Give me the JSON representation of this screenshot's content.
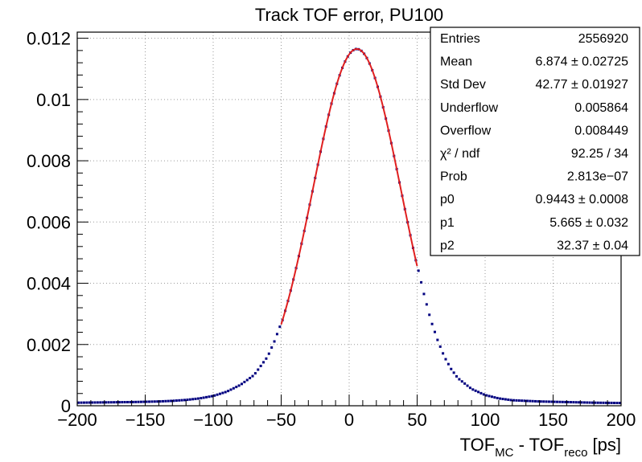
{
  "chart_data": {
    "type": "scatter",
    "title": "Track TOF error, PU100",
    "xlabel": {
      "main": "TOF",
      "sub1": "MC",
      "mid": " - TOF",
      "sub2": "reco",
      "unit": " [ps]"
    },
    "ylabel": "",
    "xlim": [
      -200,
      200
    ],
    "ylim": [
      0,
      0.0122
    ],
    "grid": true,
    "xticks": [
      -200,
      -150,
      -100,
      -50,
      0,
      50,
      100,
      150,
      200
    ],
    "xtick_labels": [
      "−200",
      "−150",
      "−100",
      "−50",
      "0",
      "50",
      "100",
      "150",
      "200"
    ],
    "yticks": [
      0,
      0.002,
      0.004,
      0.006,
      0.008,
      0.01,
      0.012
    ],
    "ytick_labels": [
      "0",
      "0.002",
      "0.004",
      "0.006",
      "0.008",
      "0.01",
      "0.012"
    ],
    "histogram": {
      "bin_width": 2,
      "x_start": -200,
      "x_end": 200,
      "tail_left": [
        [
          -200,
          0.0001
        ],
        [
          -180,
          0.00011
        ],
        [
          -160,
          0.00012
        ],
        [
          -140,
          0.00014
        ],
        [
          -130,
          0.00016
        ],
        [
          -120,
          0.00019
        ],
        [
          -110,
          0.00024
        ],
        [
          -100,
          0.00032
        ],
        [
          -90,
          0.00046
        ],
        [
          -80,
          0.00068
        ],
        [
          -70,
          0.001
        ],
        [
          -60,
          0.0016
        ],
        [
          -55,
          0.0021
        ],
        [
          -50,
          0.0027
        ],
        [
          -45,
          0.0035
        ]
      ],
      "tail_right": [
        [
          50,
          0.0046
        ],
        [
          55,
          0.00365
        ],
        [
          60,
          0.0028
        ],
        [
          65,
          0.00215
        ],
        [
          70,
          0.0016
        ],
        [
          75,
          0.0012
        ],
        [
          80,
          0.0009
        ],
        [
          90,
          0.00055
        ],
        [
          100,
          0.00035
        ],
        [
          110,
          0.00024
        ],
        [
          120,
          0.00018
        ],
        [
          140,
          0.00014
        ],
        [
          160,
          0.00012
        ],
        [
          180,
          0.0001
        ],
        [
          200,
          9e-05
        ]
      ],
      "color": "#000080"
    },
    "fit": {
      "function": "gaus",
      "range": [
        -50,
        50
      ],
      "p0": 0.9443,
      "p1": 5.665,
      "p2": 32.37,
      "amplitude": 0.01165,
      "color": "#e02020"
    },
    "stats_box": {
      "position": "top-right",
      "rows": [
        {
          "label": "Entries",
          "value": "2556920"
        },
        {
          "label": "Mean",
          "value": "6.874 ± 0.02725"
        },
        {
          "label": "Std Dev",
          "value": "42.77 ± 0.01927"
        },
        {
          "label": "Underflow",
          "value": "0.005864"
        },
        {
          "label": "Overflow",
          "value": "0.008449"
        },
        {
          "label": "χ² / ndf",
          "value": "92.25 / 34"
        },
        {
          "label": "Prob",
          "value": "2.813e−07"
        },
        {
          "label": "p0",
          "value": "0.9443 ± 0.0008"
        },
        {
          "label": "p1",
          "value": "5.665 ± 0.032"
        },
        {
          "label": "p2",
          "value": "32.37 ± 0.04"
        }
      ]
    }
  }
}
